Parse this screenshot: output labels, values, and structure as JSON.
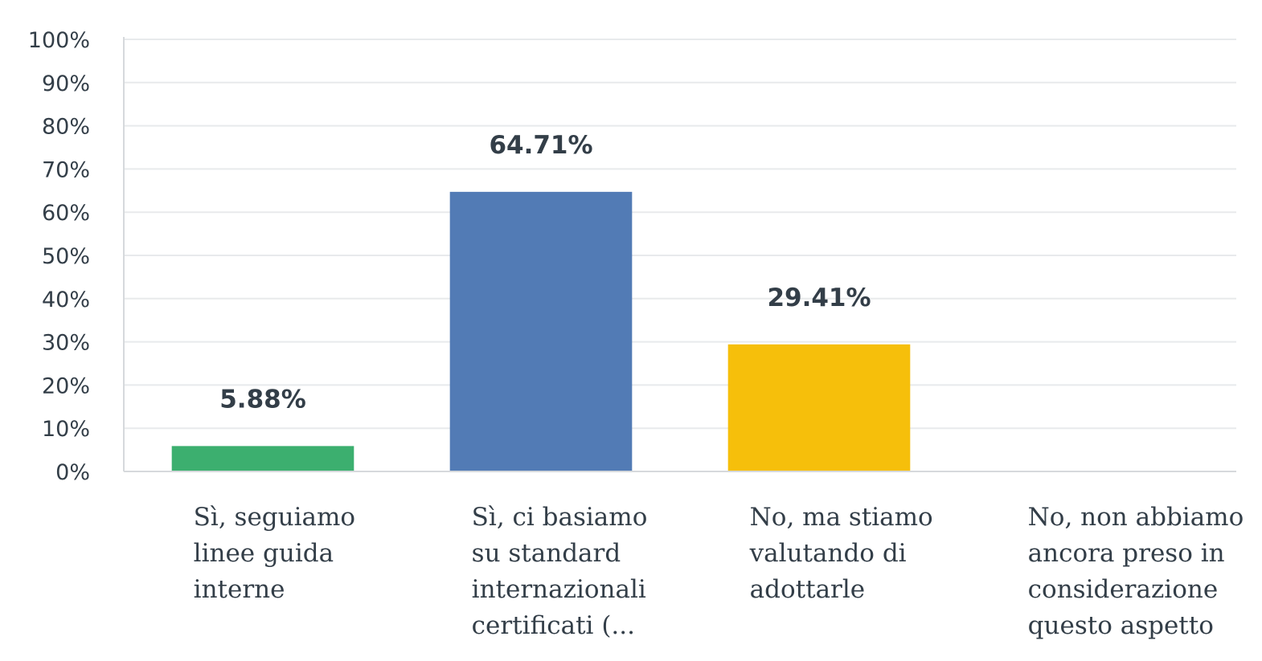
{
  "chart_data": {
    "type": "bar",
    "ylim": [
      0,
      100
    ],
    "yticks": [
      "0%",
      "10%",
      "20%",
      "30%",
      "40%",
      "50%",
      "60%",
      "70%",
      "80%",
      "90%",
      "100%"
    ],
    "grid": true,
    "categories": [
      [
        "Sì, seguiamo",
        "linee guida",
        "interne"
      ],
      [
        "Sì, ci basiamo",
        "su standard",
        "internazionali",
        "certificati (..."
      ],
      [
        "No, ma stiamo",
        "valutando di",
        "adottarle"
      ],
      [
        "No, non abbiamo",
        "ancora preso in",
        "considerazione",
        "questo aspetto"
      ]
    ],
    "values": [
      5.88,
      64.71,
      29.41,
      0
    ],
    "data_labels": [
      "5.88%",
      "64.71%",
      "29.41%",
      ""
    ],
    "colors": [
      "#3caf6f",
      "#527bb5",
      "#f6bf0b",
      "#c8c8c8"
    ]
  }
}
